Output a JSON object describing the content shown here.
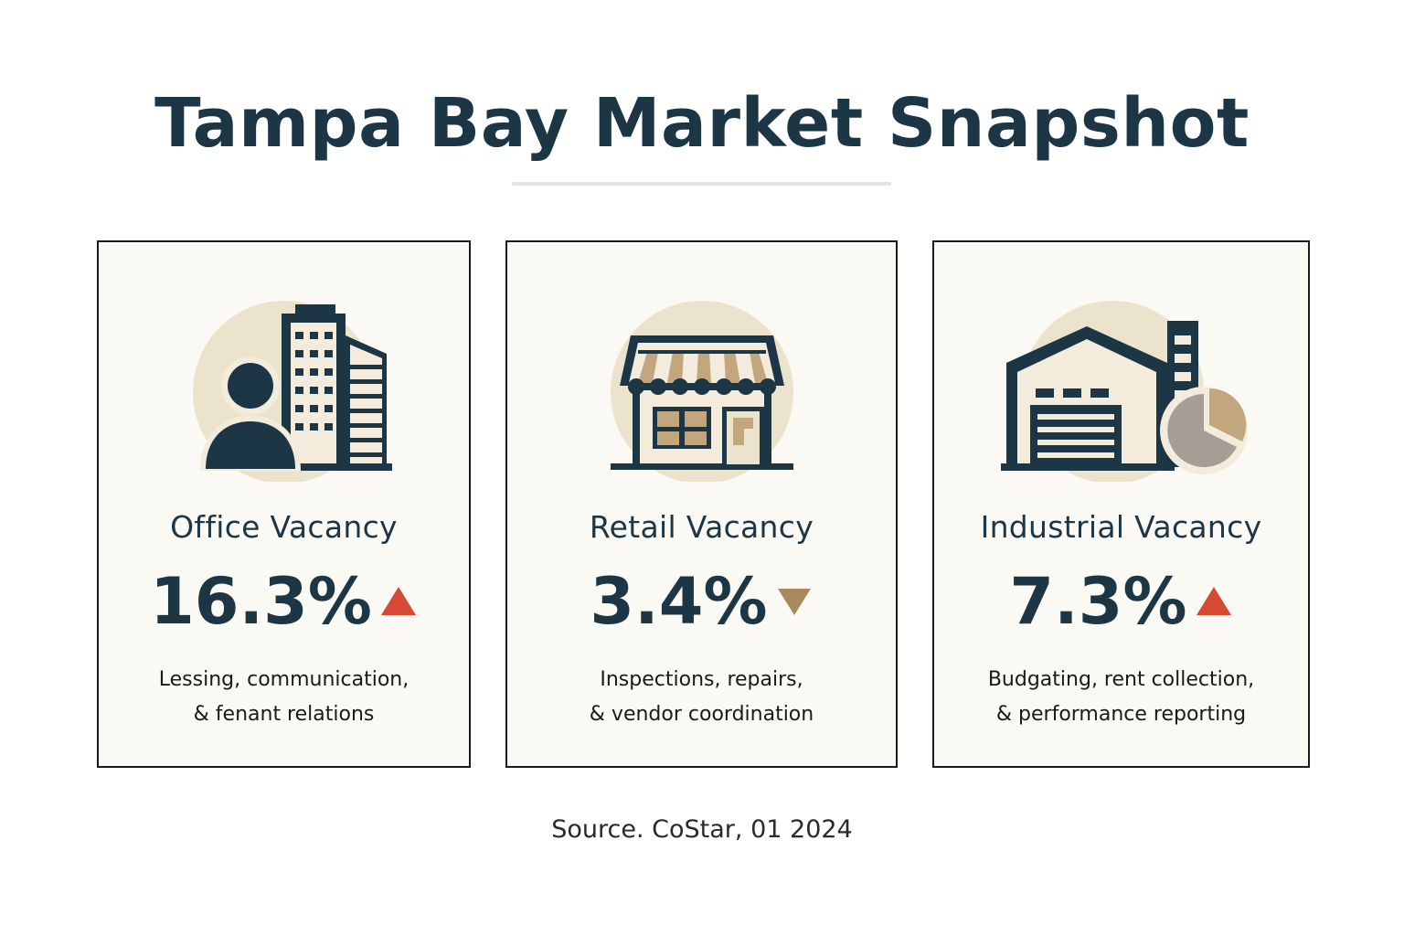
{
  "title": "Tampa Bay Market Snapshot",
  "colors": {
    "navy": "#1c3646",
    "beige": "#ece3cc",
    "tan": "#c2a67e",
    "up_red": "#d64a33",
    "down_tan": "#a88a5e",
    "card_bg": "#fbf9f3"
  },
  "cards": [
    {
      "icon": "office-building-person-icon",
      "label": "Office Vacancy",
      "value": "16.3%",
      "trend": "up",
      "desc_line1": "Lessing, communication,",
      "desc_line2": "& fenant relations"
    },
    {
      "icon": "storefront-icon",
      "label": "Retail Vacancy",
      "value": "3.4%",
      "trend": "down",
      "desc_line1": "Inspections, repairs,",
      "desc_line2": "& vendor coordination"
    },
    {
      "icon": "warehouse-pie-chart-icon",
      "label": "Industrial Vacancy",
      "value": "7.3%",
      "trend": "up",
      "desc_line1": "Budgating, rent collection,",
      "desc_line2": "& performance reporting"
    }
  ],
  "source": "Source. CoStar, 01 2024"
}
